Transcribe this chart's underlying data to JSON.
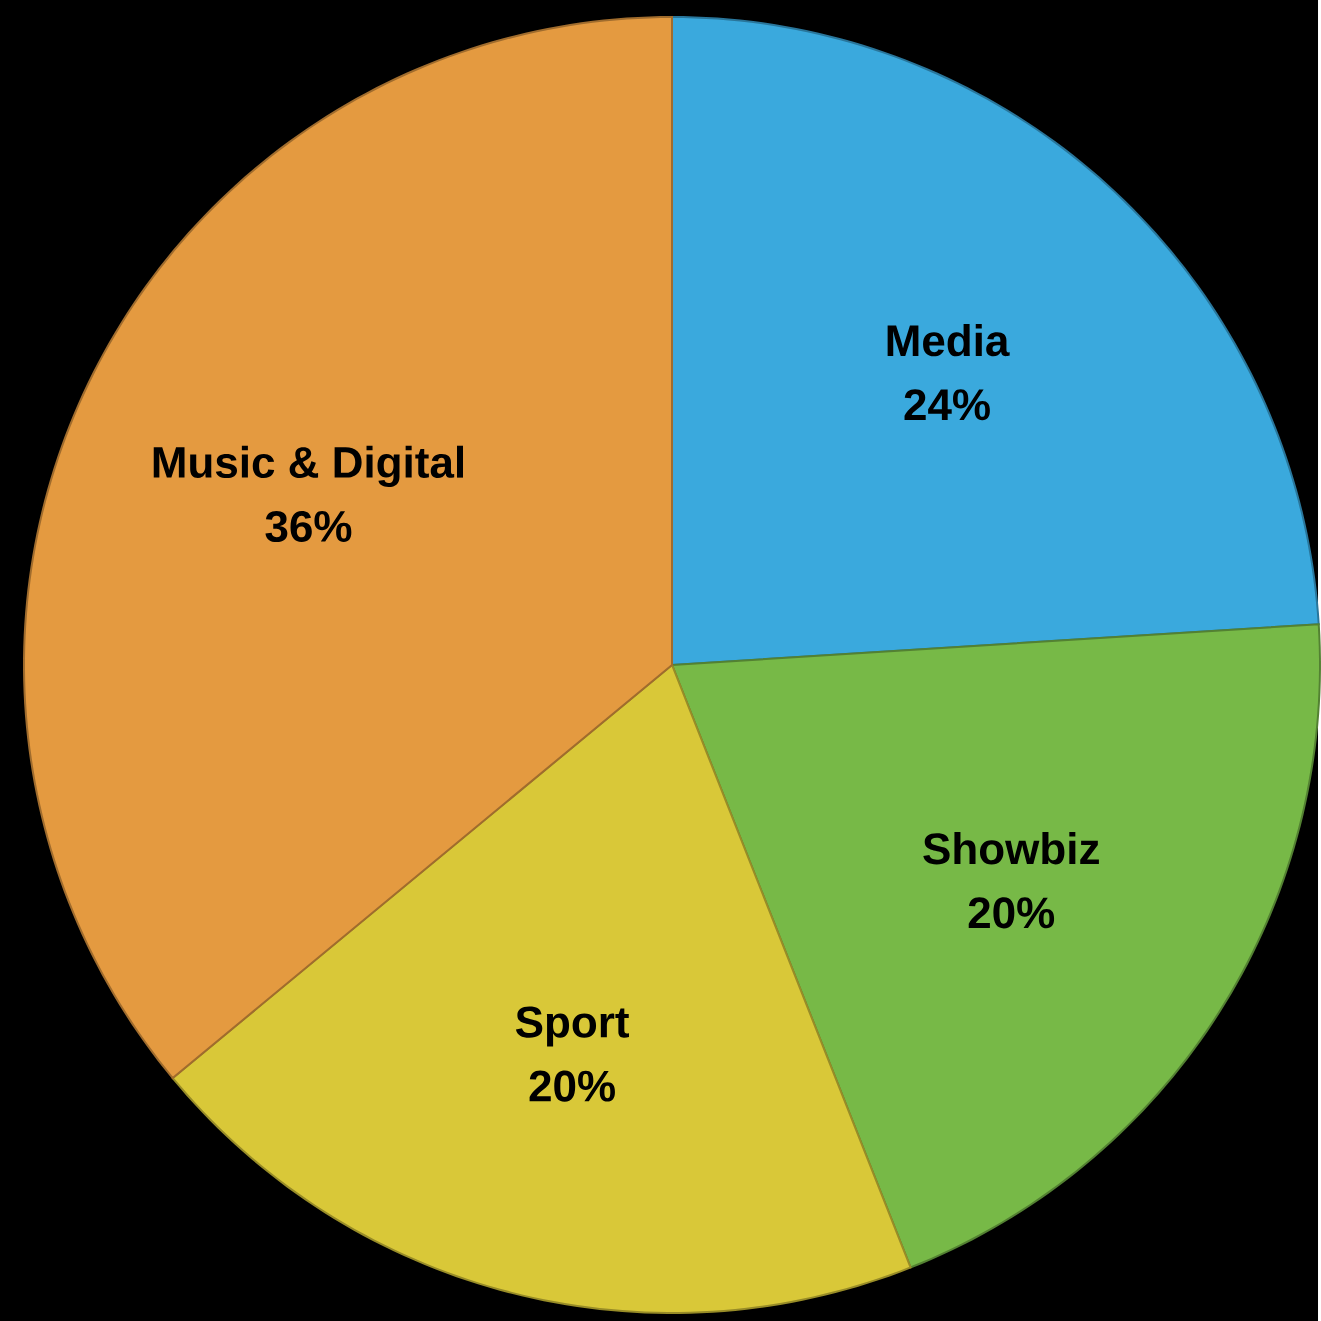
{
  "chart_data": {
    "type": "pie",
    "categories": [
      "Media",
      "Showbiz",
      "Sport",
      "Music & Digital"
    ],
    "values": [
      24,
      20,
      20,
      36
    ],
    "colors": [
      "#3aa9dd",
      "#77b947",
      "#d9c838",
      "#e49a40"
    ],
    "value_labels": [
      "24%",
      "20%",
      "20%",
      "36%"
    ]
  }
}
